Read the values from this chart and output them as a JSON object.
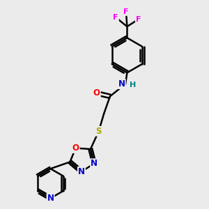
{
  "bg_color": "#ebebeb",
  "bond_color": "#000000",
  "atom_colors": {
    "N": "#0000cc",
    "O": "#ff0000",
    "S": "#aaaa00",
    "F": "#ff00ff",
    "H": "#008080",
    "C": "#000000"
  },
  "line_width": 1.8,
  "dbo": 0.12
}
